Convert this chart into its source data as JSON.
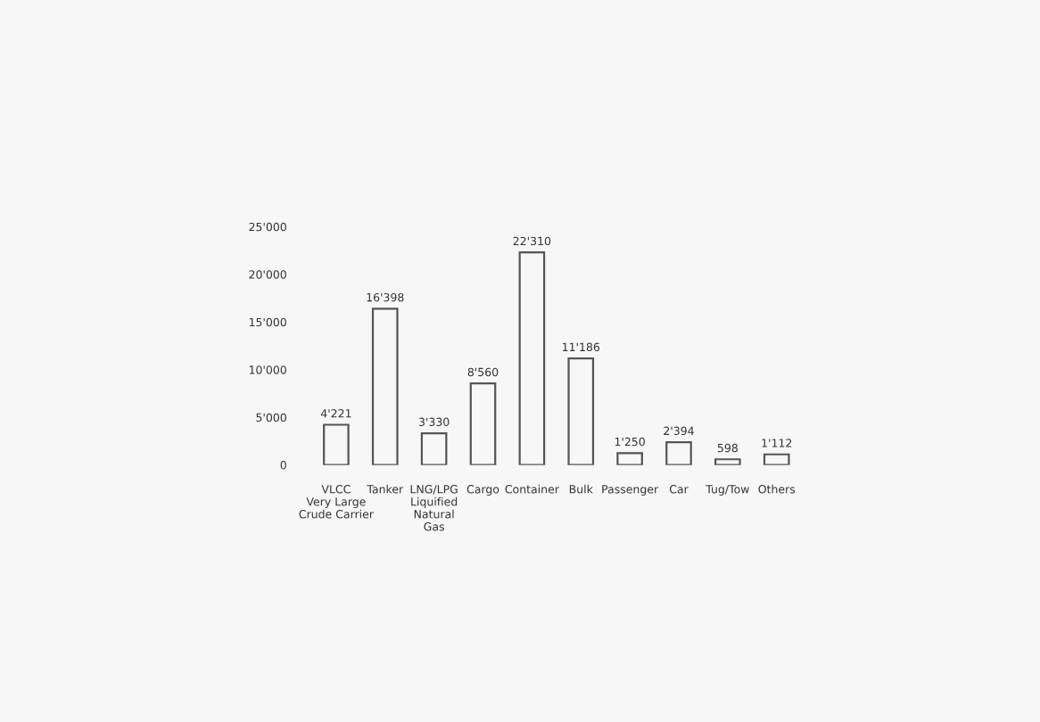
{
  "chart_data": {
    "type": "bar",
    "categories": [
      "VLCC\nVery Large\nCrude Carrier",
      "Tanker",
      "LNG/LPG\nLiquified\nNatural\nGas",
      "Cargo",
      "Container",
      "Bulk",
      "Passenger",
      "Car",
      "Tug/Tow",
      "Others"
    ],
    "values": [
      4221,
      16398,
      3330,
      8560,
      22310,
      11186,
      1250,
      2394,
      598,
      1112
    ],
    "value_labels": [
      "4'221",
      "16'398",
      "3'330",
      "8'560",
      "22'310",
      "11'186",
      "1'250",
      "2'394",
      "598",
      "1'112"
    ],
    "color": "#555555",
    "ylim": [
      0,
      25000
    ],
    "yticks": [
      {
        "value": 0,
        "label": "0"
      },
      {
        "value": 5000,
        "label": "5'000"
      },
      {
        "value": 10000,
        "label": "10'000"
      },
      {
        "value": 15000,
        "label": "15'000"
      },
      {
        "value": 20000,
        "label": "20'000"
      },
      {
        "value": 25000,
        "label": "25'000"
      }
    ],
    "grid": false,
    "legend": false
  }
}
